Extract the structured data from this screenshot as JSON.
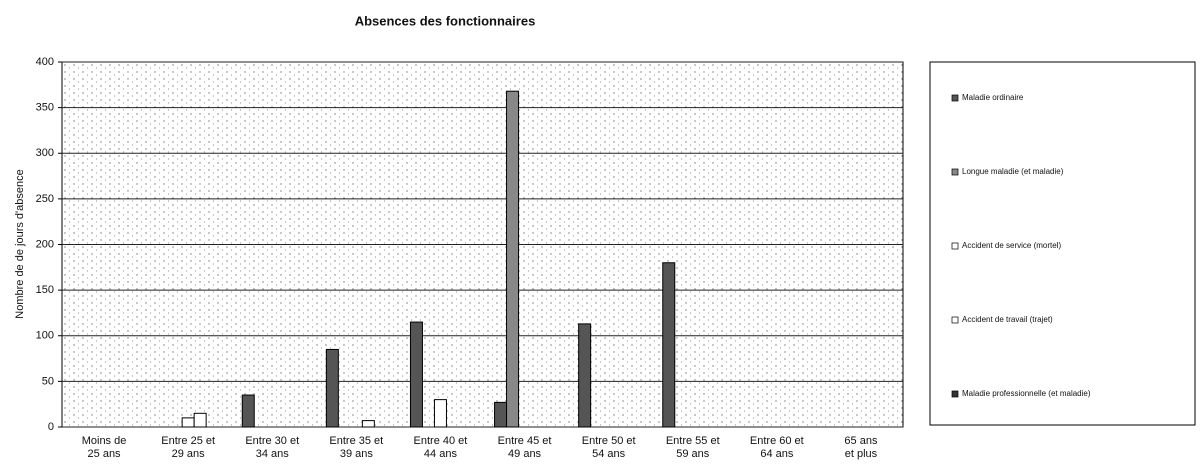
{
  "chart_data": {
    "type": "bar",
    "title": "Absences des fonctionnaires",
    "y_label": "Nombre de de jours d'absence",
    "categories": [
      "Moins de 25 ans",
      "Entre 25 et 29 ans",
      "Entre 30 et 34 ans",
      "Entre 35 et 39 ans",
      "Entre 40 et 44 ans",
      "Entre 45 et 49 ans",
      "Entre 50 et 54 ans",
      "Entre 55 et 59 ans",
      "Entre 60 et 64 ans",
      "65 ans et plus"
    ],
    "series": [
      {
        "name": "Maladie ordinaire",
        "color": "#555555",
        "values": [
          0,
          0,
          35,
          85,
          115,
          27,
          113,
          180,
          0,
          0
        ]
      },
      {
        "name": "Longue maladie (et maladie)",
        "color": "#888888",
        "values": [
          0,
          0,
          0,
          0,
          0,
          368,
          0,
          0,
          0,
          0
        ]
      },
      {
        "name": "Accident de service (mortel)",
        "color": "#ffffff",
        "values": [
          0,
          10,
          0,
          0,
          30,
          0,
          0,
          0,
          0,
          0
        ]
      },
      {
        "name": "Accident de travail (trajet)",
        "color": "#ffffff",
        "values": [
          0,
          15,
          0,
          7,
          0,
          0,
          0,
          0,
          0,
          0
        ]
      },
      {
        "name": "Maladie professionnelle (et maladie)",
        "color": "#333333",
        "values": [
          0,
          0,
          0,
          0,
          0,
          0,
          0,
          0,
          0,
          0
        ]
      }
    ],
    "ylim": [
      0,
      400
    ],
    "yticks": [
      0,
      50,
      100,
      150,
      200,
      250,
      300,
      350,
      400
    ],
    "grid": true,
    "legend": "right"
  }
}
